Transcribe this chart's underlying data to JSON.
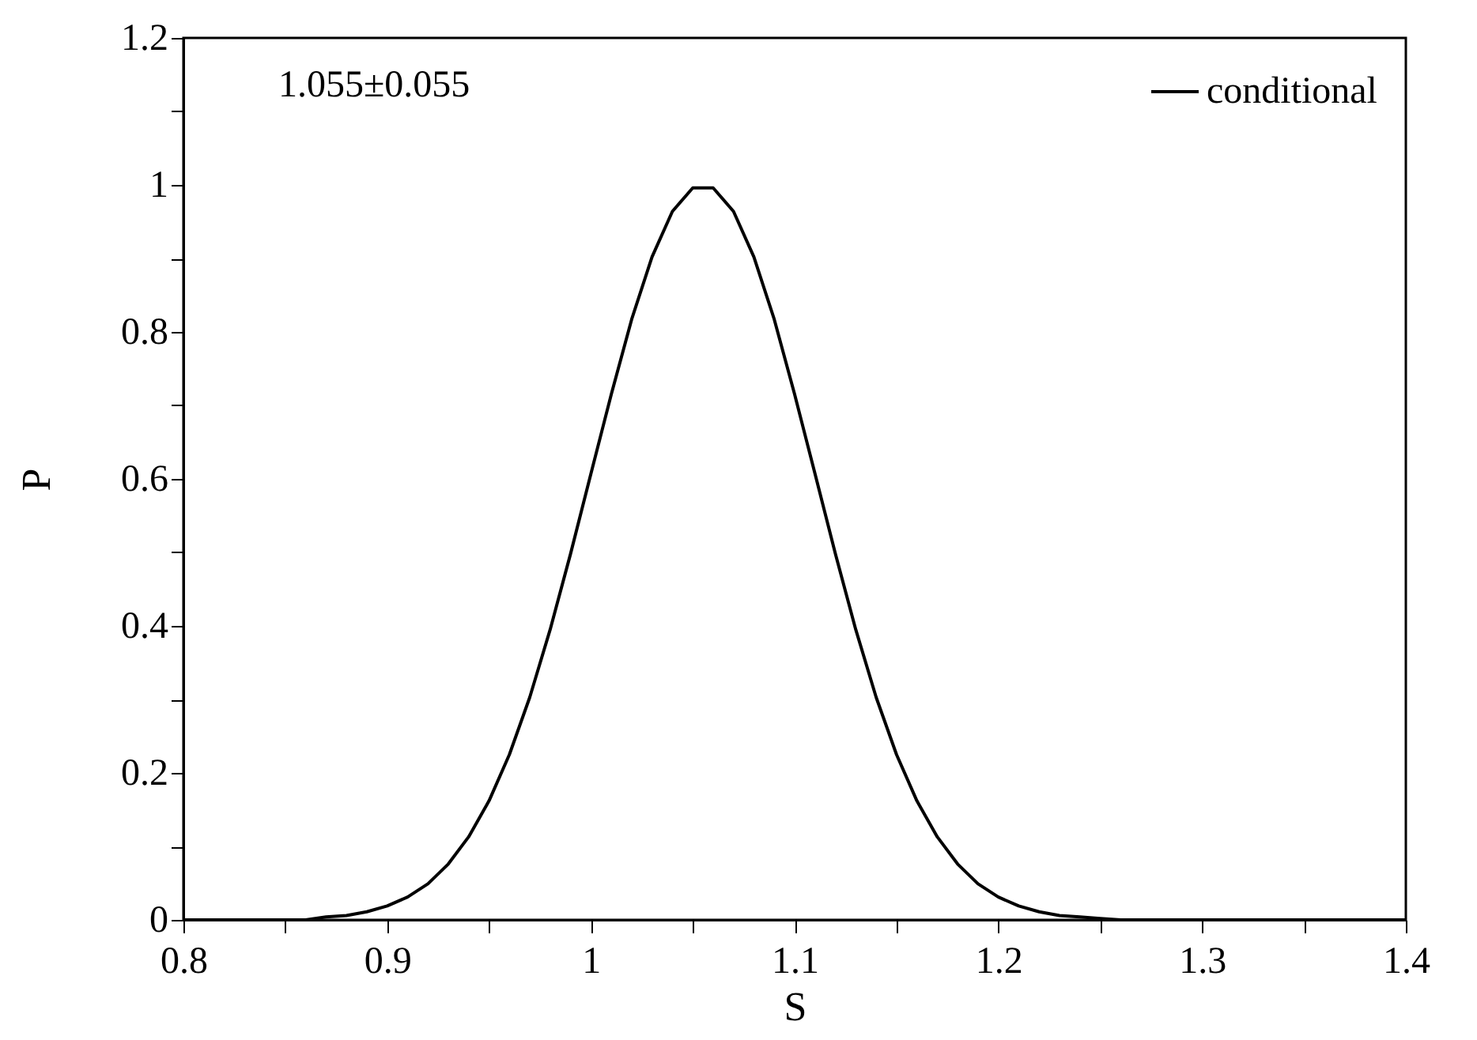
{
  "chart_data": {
    "type": "line",
    "xlabel": "S",
    "ylabel": "P",
    "annotations": [
      "1.055±0.055"
    ],
    "x": [
      0.8,
      0.82,
      0.84,
      0.85,
      0.86,
      0.87,
      0.88,
      0.89,
      0.9,
      0.91,
      0.92,
      0.93,
      0.94,
      0.95,
      0.96,
      0.97,
      0.98,
      0.99,
      1.0,
      1.01,
      1.02,
      1.03,
      1.04,
      1.05,
      1.06,
      1.07,
      1.08,
      1.09,
      1.1,
      1.11,
      1.12,
      1.13,
      1.14,
      1.15,
      1.16,
      1.17,
      1.18,
      1.19,
      1.2,
      1.21,
      1.22,
      1.23,
      1.24,
      1.25,
      1.26,
      1.28,
      1.3,
      1.35,
      1.4
    ],
    "series": [
      {
        "name": "conditional",
        "color": "#000000",
        "values": [
          0,
          0,
          0,
          0,
          0,
          0.004,
          0.006,
          0.011,
          0.019,
          0.031,
          0.049,
          0.076,
          0.113,
          0.162,
          0.225,
          0.303,
          0.395,
          0.498,
          0.607,
          0.715,
          0.817,
          0.902,
          0.964,
          0.996,
          0.996,
          0.964,
          0.902,
          0.817,
          0.715,
          0.607,
          0.498,
          0.395,
          0.303,
          0.225,
          0.162,
          0.113,
          0.076,
          0.049,
          0.031,
          0.019,
          0.011,
          0.006,
          0.004,
          0.002,
          0,
          0,
          0,
          0,
          0
        ]
      }
    ],
    "xlim": [
      0.8,
      1.4
    ],
    "ylim": [
      0,
      1.2
    ],
    "xticks": [
      0.8,
      {
        "value": 0.85,
        "label": null
      },
      0.9,
      {
        "value": 0.95,
        "label": null
      },
      {
        "value": 1,
        "label": "1"
      },
      {
        "value": 1.05,
        "label": null
      },
      1.1,
      {
        "value": 1.15,
        "label": null
      },
      1.2,
      {
        "value": 1.25,
        "label": null
      },
      1.3,
      {
        "value": 1.35,
        "label": null
      },
      1.4
    ],
    "yticks": [
      0,
      {
        "value": 0.1,
        "label": null
      },
      0.2,
      {
        "value": 0.3,
        "label": null
      },
      0.4,
      {
        "value": 0.5,
        "label": null
      },
      0.6,
      {
        "value": 0.7,
        "label": null
      },
      0.8,
      {
        "value": 0.9,
        "label": null
      },
      {
        "value": 1,
        "label": "1"
      },
      {
        "value": 1.1,
        "label": null
      },
      1.2
    ],
    "grid": false,
    "legend": "top right",
    "marker": "none",
    "line_style": "solid"
  }
}
